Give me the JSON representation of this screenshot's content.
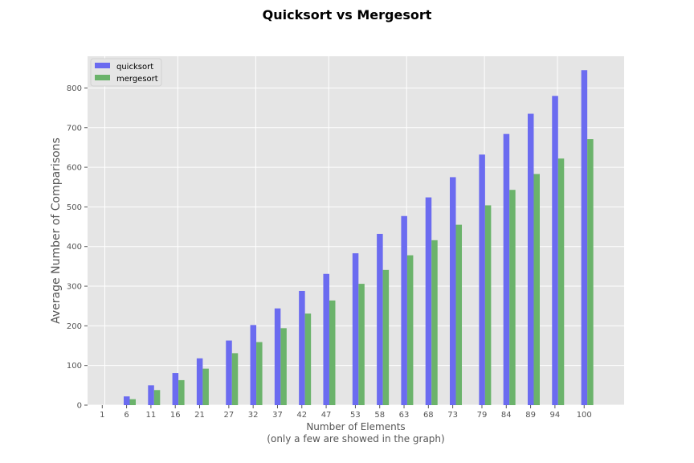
{
  "chart_data": {
    "type": "bar",
    "title": "Quicksort vs Mergesort",
    "xlabel": "Number of Elements",
    "xlabel_note": "(only a few are showed in the graph)",
    "ylabel": "Average Number of Comparisons",
    "ylim": [
      0,
      880
    ],
    "yticks": [
      0,
      100,
      200,
      300,
      400,
      500,
      600,
      700,
      800
    ],
    "grid": true,
    "legend_position": "top-left",
    "x": [
      1,
      6,
      11,
      16,
      21,
      27,
      32,
      37,
      42,
      47,
      53,
      58,
      63,
      68,
      73,
      79,
      84,
      89,
      94,
      100
    ],
    "series": [
      {
        "name": "quicksort",
        "color": "#6b6bf0",
        "values": [
          0,
          22,
          50,
          81,
          118,
          163,
          202,
          244,
          288,
          331,
          383,
          432,
          477,
          524,
          575,
          632,
          684,
          735,
          780,
          845
        ]
      },
      {
        "name": "mergesort",
        "color": "#6bb36b",
        "values": [
          0,
          15,
          38,
          63,
          92,
          131,
          159,
          194,
          231,
          264,
          306,
          341,
          378,
          416,
          455,
          504,
          543,
          583,
          622,
          671
        ]
      }
    ]
  }
}
